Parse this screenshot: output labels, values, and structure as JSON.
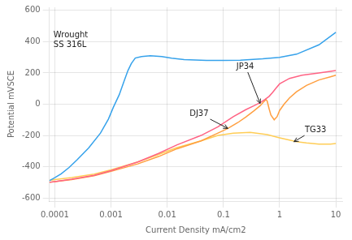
{
  "chart_data": {
    "type": "line",
    "xlabel": "Current Density mA/cm2",
    "ylabel": "Potential mVSCE",
    "log": "x",
    "grid": true,
    "xlim": [
      8e-05,
      13
    ],
    "xticks": [
      0.0001,
      0.001,
      0.01,
      0.1,
      1,
      10
    ],
    "ylim": [
      -620,
      620
    ],
    "yticks": [
      -600,
      -400,
      -200,
      0,
      200,
      400,
      600
    ],
    "series": [
      {
        "name": "Wrought SS 316L",
        "x": [
          8e-05,
          0.0001,
          0.00013,
          0.00018,
          0.00025,
          0.0004,
          0.00065,
          0.0009,
          0.0011,
          0.0014,
          0.0017,
          0.002,
          0.0023,
          0.0027,
          0.0035,
          0.005,
          0.008,
          0.012,
          0.02,
          0.05,
          0.1,
          0.2,
          0.5,
          1.0,
          2.0,
          5.0,
          10.0
        ],
        "values": [
          -490,
          -470,
          -445,
          -405,
          -355,
          -280,
          -185,
          -95,
          -20,
          60,
          145,
          215,
          260,
          295,
          305,
          310,
          305,
          295,
          285,
          280,
          280,
          282,
          290,
          300,
          320,
          380,
          460
        ]
      },
      {
        "name": "JP34",
        "x": [
          8e-05,
          0.0001,
          0.0002,
          0.0005,
          0.001,
          0.003,
          0.007,
          0.015,
          0.04,
          0.08,
          0.15,
          0.25,
          0.35,
          0.45,
          0.55,
          0.65,
          0.75,
          0.85,
          1.0,
          1.5,
          2.5,
          5.0,
          8.0,
          10.0
        ],
        "values": [
          -500,
          -495,
          -480,
          -455,
          -425,
          -370,
          -315,
          -260,
          -200,
          -145,
          -80,
          -35,
          -10,
          10,
          30,
          50,
          75,
          100,
          130,
          165,
          185,
          200,
          210,
          215
        ]
      },
      {
        "name": "DJ37",
        "x": [
          8e-05,
          0.0001,
          0.0002,
          0.0005,
          0.001,
          0.003,
          0.007,
          0.015,
          0.04,
          0.08,
          0.12,
          0.18,
          0.25,
          0.35,
          0.45,
          0.52,
          0.57,
          0.6,
          0.62,
          0.65,
          0.7,
          0.8,
          0.9,
          1.0,
          1.2,
          1.5,
          2.0,
          3.0,
          5.0,
          8.0,
          10.0
        ],
        "values": [
          -500,
          -495,
          -482,
          -458,
          -430,
          -382,
          -335,
          -285,
          -235,
          -185,
          -155,
          -118,
          -82,
          -42,
          -10,
          15,
          30,
          20,
          0,
          -30,
          -70,
          -100,
          -80,
          -40,
          0,
          40,
          80,
          120,
          155,
          175,
          185
        ]
      },
      {
        "name": "TG33",
        "x": [
          8e-05,
          0.0001,
          0.0002,
          0.0005,
          0.001,
          0.003,
          0.007,
          0.015,
          0.04,
          0.08,
          0.15,
          0.3,
          0.6,
          1.0,
          1.5,
          2.0,
          3.0,
          5.0,
          8.0,
          10.0
        ],
        "values": [
          -488,
          -482,
          -470,
          -448,
          -420,
          -370,
          -322,
          -278,
          -235,
          -200,
          -185,
          -180,
          -195,
          -215,
          -230,
          -240,
          -248,
          -255,
          -255,
          -252
        ]
      }
    ],
    "annotations": [
      {
        "text": "Wrought\nSS 316L",
        "x": 9.5e-05,
        "y": 355
      },
      {
        "text": "JP34",
        "x": 0.17,
        "y": 215,
        "arrow_x": 0.45,
        "arrow_y": 5
      },
      {
        "text": "DJ37",
        "x": 0.025,
        "y": -90,
        "arrow_x": 0.12,
        "arrow_y": -155
      },
      {
        "text": "TG33",
        "x": 2.8,
        "y": -190,
        "arrow_x": 1.8,
        "arrow_y": -240
      }
    ]
  }
}
